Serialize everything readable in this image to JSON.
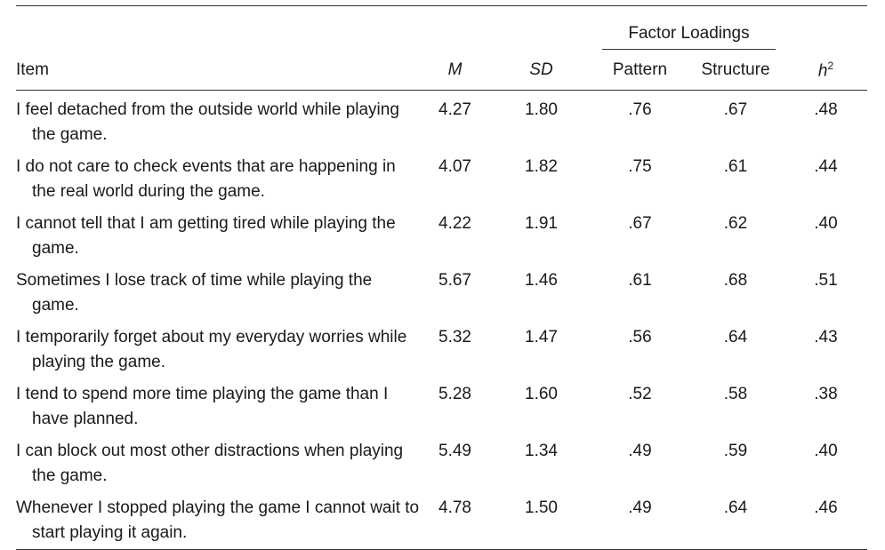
{
  "header": {
    "group_label": "Factor Loadings",
    "columns": {
      "item": "Item",
      "m": "M",
      "sd": "SD",
      "pattern": "Pattern",
      "structure": "Structure",
      "h2_base": "h",
      "h2_sup": "2"
    }
  },
  "rows": [
    {
      "item": "I feel detached from the outside world while playing the game.",
      "m": "4.27",
      "sd": "1.80",
      "pattern": ".76",
      "structure": ".67",
      "h2": ".48"
    },
    {
      "item": "I do not care to check events that are happening in the real world during the game.",
      "m": "4.07",
      "sd": "1.82",
      "pattern": ".75",
      "structure": ".61",
      "h2": ".44"
    },
    {
      "item": "I cannot tell that I am getting tired while playing the game.",
      "m": "4.22",
      "sd": "1.91",
      "pattern": ".67",
      "structure": ".62",
      "h2": ".40"
    },
    {
      "item": "Sometimes I lose track of time while playing the game.",
      "m": "5.67",
      "sd": "1.46",
      "pattern": ".61",
      "structure": ".68",
      "h2": ".51"
    },
    {
      "item": "I temporarily forget about my everyday worries while playing the game.",
      "m": "5.32",
      "sd": "1.47",
      "pattern": ".56",
      "structure": ".64",
      "h2": ".43"
    },
    {
      "item": "I tend to spend more time playing the game than I have planned.",
      "m": "5.28",
      "sd": "1.60",
      "pattern": ".52",
      "structure": ".58",
      "h2": ".38"
    },
    {
      "item": "I can block out most other distractions when playing the game.",
      "m": "5.49",
      "sd": "1.34",
      "pattern": ".49",
      "structure": ".59",
      "h2": ".40"
    },
    {
      "item": "Whenever I stopped playing the game I cannot wait to start playing it again.",
      "m": "4.78",
      "sd": "1.50",
      "pattern": ".49",
      "structure": ".64",
      "h2": ".46"
    }
  ]
}
